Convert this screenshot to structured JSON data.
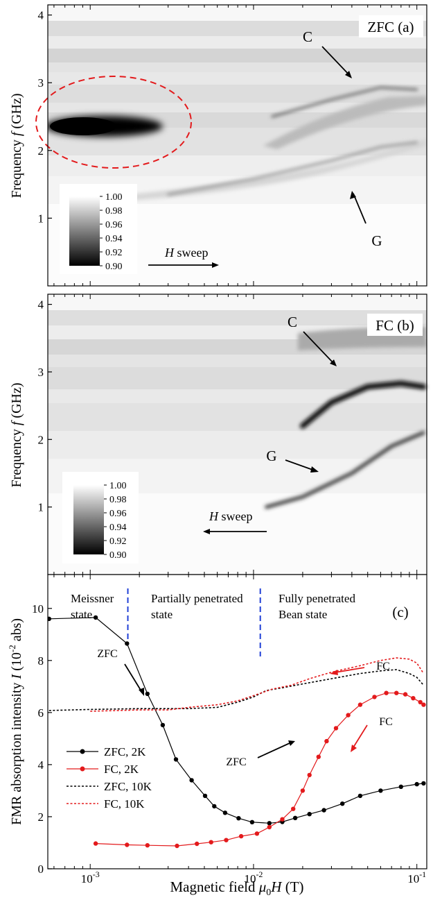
{
  "xaxis": {
    "label": "Magnetic field μ0H (T)",
    "label_parts": {
      "prefix": "Magnetic field ",
      "mu": "μ",
      "sub": "0",
      "var": "H",
      "unit": " (T)"
    },
    "scale": "log",
    "xlim": [
      0.00055,
      0.115
    ],
    "ticks": [
      {
        "value": 0.001,
        "base": "10",
        "exp": "-3"
      },
      {
        "value": 0.01,
        "base": "10",
        "exp": "-2"
      },
      {
        "value": 0.1,
        "base": "10",
        "exp": "-1"
      }
    ]
  },
  "chart_data": [
    {
      "type": "heatmap",
      "panel_label": "ZFC (a)",
      "ylabel": "Frequency f (GHz)",
      "ylabel_parts": {
        "prefix": "Frequency ",
        "var": "f",
        "unit": " (GHz)"
      },
      "ylim": [
        0,
        4.15
      ],
      "yticks": [
        "1",
        "2",
        "3",
        "4"
      ],
      "colorbar": {
        "min": 0.9,
        "max": 1.0,
        "ticks": [
          "1.00",
          "0.98",
          "0.96",
          "0.94",
          "0.92",
          "0.90"
        ]
      },
      "annotations": {
        "C": "C",
        "G": "G",
        "sweep_var": "H",
        "sweep_text": " sweep",
        "sweep_direction": "right"
      },
      "features": [
        {
          "name": "C",
          "points": [
            [
              0.013,
              2.5
            ],
            [
              0.03,
              2.75
            ],
            [
              0.06,
              2.93
            ],
            [
              0.1,
              2.9
            ]
          ]
        },
        {
          "name": "G",
          "points": [
            [
              0.003,
              1.35
            ],
            [
              0.01,
              1.58
            ],
            [
              0.03,
              1.85
            ],
            [
              0.06,
              2.05
            ],
            [
              0.1,
              2.12
            ]
          ]
        }
      ]
    },
    {
      "type": "heatmap",
      "panel_label": "FC (b)",
      "ylabel": "Frequency f (GHz)",
      "ylabel_parts": {
        "prefix": "Frequency ",
        "var": "f",
        "unit": " (GHz)"
      },
      "ylim": [
        0,
        4.15
      ],
      "yticks": [
        "1",
        "2",
        "3",
        "4"
      ],
      "colorbar": {
        "min": 0.9,
        "max": 1.0,
        "ticks": [
          "1.00",
          "0.98",
          "0.96",
          "0.94",
          "0.92",
          "0.90"
        ]
      },
      "annotations": {
        "C": "C",
        "G": "G",
        "sweep_var": "H",
        "sweep_text": " sweep",
        "sweep_direction": "left"
      },
      "features": [
        {
          "name": "C",
          "points": [
            [
              0.02,
              2.2
            ],
            [
              0.03,
              2.55
            ],
            [
              0.05,
              2.78
            ],
            [
              0.08,
              2.83
            ],
            [
              0.11,
              2.78
            ]
          ]
        },
        {
          "name": "G",
          "points": [
            [
              0.012,
              1.0
            ],
            [
              0.02,
              1.15
            ],
            [
              0.04,
              1.5
            ],
            [
              0.07,
              1.9
            ],
            [
              0.11,
              2.1
            ]
          ]
        }
      ]
    },
    {
      "type": "line",
      "panel_label": "(c)",
      "ylabel": "FMR absorption intensity I (10-2 abs)",
      "ylabel_parts": {
        "prefix": "FMR absorption intensity ",
        "var": "I",
        "unit_pre": " (10",
        "unit_exp": "-2",
        "unit_post": " abs)"
      },
      "ylim": [
        0,
        11.3
      ],
      "yticks": [
        "0",
        "2",
        "4",
        "6",
        "8",
        "10"
      ],
      "regions": [
        {
          "text": [
            "Meissner",
            "state"
          ]
        },
        {
          "text": [
            "Partially penetrated",
            "state"
          ]
        },
        {
          "text": [
            "Fully penetrated",
            "Bean state"
          ]
        }
      ],
      "boundaries": [
        0.0017,
        0.011
      ],
      "annotations": {
        "zfc_top": "ZFC",
        "fc_top": "FC",
        "zfc_mid": "ZFC",
        "fc_right": "FC"
      },
      "legend": {
        "position": "left",
        "entries": [
          "ZFC, 2K",
          "FC, 2K",
          "ZFC, 10K",
          "FC, 10K"
        ]
      },
      "series": [
        {
          "name": "ZFC, 2K",
          "style": "solid-dots",
          "color": "#000000",
          "points": [
            [
              0.00056,
              9.6
            ],
            [
              0.00108,
              9.65
            ],
            [
              0.00168,
              8.65
            ],
            [
              0.00224,
              6.72
            ],
            [
              0.00278,
              5.52
            ],
            [
              0.00335,
              4.2
            ],
            [
              0.00418,
              3.4
            ],
            [
              0.00505,
              2.8
            ],
            [
              0.00575,
              2.4
            ],
            [
              0.0067,
              2.15
            ],
            [
              0.0081,
              1.94
            ],
            [
              0.0098,
              1.79
            ],
            [
              0.0125,
              1.75
            ],
            [
              0.015,
              1.8
            ],
            [
              0.018,
              1.95
            ],
            [
              0.022,
              2.1
            ],
            [
              0.027,
              2.25
            ],
            [
              0.035,
              2.5
            ],
            [
              0.045,
              2.8
            ],
            [
              0.06,
              3.0
            ],
            [
              0.08,
              3.15
            ],
            [
              0.1,
              3.25
            ],
            [
              0.11,
              3.28
            ]
          ]
        },
        {
          "name": "FC, 2K",
          "style": "solid-dots",
          "color": "#e31a1c",
          "points": [
            [
              0.00108,
              0.97
            ],
            [
              0.00168,
              0.92
            ],
            [
              0.00224,
              0.9
            ],
            [
              0.0034,
              0.88
            ],
            [
              0.0045,
              0.96
            ],
            [
              0.0055,
              1.02
            ],
            [
              0.0068,
              1.1
            ],
            [
              0.0084,
              1.25
            ],
            [
              0.0105,
              1.35
            ],
            [
              0.0125,
              1.6
            ],
            [
              0.015,
              1.9
            ],
            [
              0.0175,
              2.3
            ],
            [
              0.02,
              3.0
            ],
            [
              0.022,
              3.6
            ],
            [
              0.025,
              4.3
            ],
            [
              0.028,
              4.9
            ],
            [
              0.032,
              5.4
            ],
            [
              0.038,
              5.9
            ],
            [
              0.045,
              6.3
            ],
            [
              0.055,
              6.6
            ],
            [
              0.065,
              6.75
            ],
            [
              0.075,
              6.75
            ],
            [
              0.085,
              6.7
            ],
            [
              0.095,
              6.55
            ],
            [
              0.105,
              6.4
            ],
            [
              0.11,
              6.3
            ]
          ]
        },
        {
          "name": "ZFC, 10K",
          "style": "dotted",
          "color": "#000000",
          "points": [
            [
              0.00056,
              6.08
            ],
            [
              0.001,
              6.12
            ],
            [
              0.002,
              6.15
            ],
            [
              0.004,
              6.15
            ],
            [
              0.006,
              6.2
            ],
            [
              0.008,
              6.4
            ],
            [
              0.01,
              6.6
            ],
            [
              0.012,
              6.85
            ],
            [
              0.015,
              6.95
            ],
            [
              0.02,
              7.1
            ],
            [
              0.03,
              7.3
            ],
            [
              0.045,
              7.5
            ],
            [
              0.06,
              7.6
            ],
            [
              0.075,
              7.65
            ],
            [
              0.09,
              7.5
            ],
            [
              0.1,
              7.35
            ],
            [
              0.11,
              7.05
            ]
          ]
        },
        {
          "name": "FC, 10K",
          "style": "dotted",
          "color": "#e31a1c",
          "points": [
            [
              0.001,
              6.05
            ],
            [
              0.002,
              6.1
            ],
            [
              0.003,
              6.1
            ],
            [
              0.004,
              6.2
            ],
            [
              0.006,
              6.3
            ],
            [
              0.008,
              6.45
            ],
            [
              0.01,
              6.65
            ],
            [
              0.013,
              6.9
            ],
            [
              0.017,
              7.05
            ],
            [
              0.022,
              7.3
            ],
            [
              0.03,
              7.55
            ],
            [
              0.045,
              7.8
            ],
            [
              0.06,
              8.0
            ],
            [
              0.075,
              8.1
            ],
            [
              0.09,
              8.05
            ],
            [
              0.1,
              7.9
            ],
            [
              0.11,
              7.5
            ]
          ]
        }
      ]
    }
  ]
}
